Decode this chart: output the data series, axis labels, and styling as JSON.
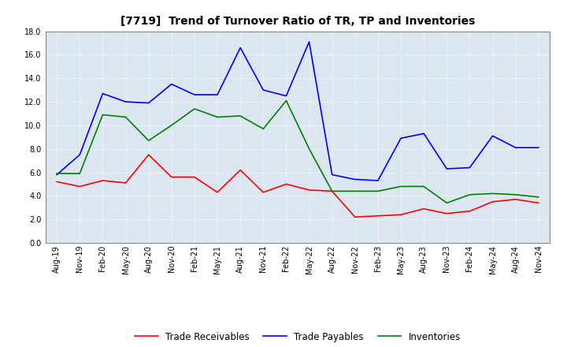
{
  "title": "[7719]  Trend of Turnover Ratio of TR, TP and Inventories",
  "x_labels": [
    "Aug-19",
    "Nov-19",
    "Feb-20",
    "May-20",
    "Aug-20",
    "Nov-20",
    "Feb-21",
    "May-21",
    "Aug-21",
    "Nov-21",
    "Feb-22",
    "May-22",
    "Aug-22",
    "Nov-22",
    "Feb-23",
    "May-23",
    "Aug-23",
    "Nov-23",
    "Feb-24",
    "May-24",
    "Aug-24",
    "Nov-24"
  ],
  "trade_receivables": [
    5.2,
    4.8,
    5.3,
    5.1,
    7.5,
    5.6,
    5.6,
    4.3,
    6.2,
    4.3,
    5.0,
    4.5,
    4.4,
    2.2,
    2.3,
    2.4,
    2.9,
    2.5,
    2.7,
    3.5,
    3.7,
    3.4
  ],
  "trade_payables": [
    5.8,
    7.5,
    12.7,
    12.0,
    11.9,
    13.5,
    12.6,
    12.6,
    16.6,
    13.0,
    12.5,
    17.1,
    5.8,
    5.4,
    5.3,
    8.9,
    9.3,
    6.3,
    6.4,
    9.1,
    8.1,
    8.1
  ],
  "inventories": [
    5.9,
    5.9,
    10.9,
    10.7,
    8.7,
    10.0,
    11.4,
    10.7,
    10.8,
    9.7,
    12.1,
    8.0,
    4.4,
    4.4,
    4.4,
    4.8,
    4.8,
    3.4,
    4.1,
    4.2,
    4.1,
    3.9
  ],
  "ylim": [
    0.0,
    18.0
  ],
  "yticks": [
    0.0,
    2.0,
    4.0,
    6.0,
    8.0,
    10.0,
    12.0,
    14.0,
    16.0,
    18.0
  ],
  "color_receivables": "#ff0000",
  "color_payables": "#0000ff",
  "color_inventories": "#008000",
  "legend_labels": [
    "Trade Receivables",
    "Trade Payables",
    "Inventories"
  ],
  "background_color": "#ffffff",
  "plot_bg_color": "#dce6f0",
  "grid_color": "#ffffff",
  "title_fontsize": 10,
  "tick_fontsize": 7
}
